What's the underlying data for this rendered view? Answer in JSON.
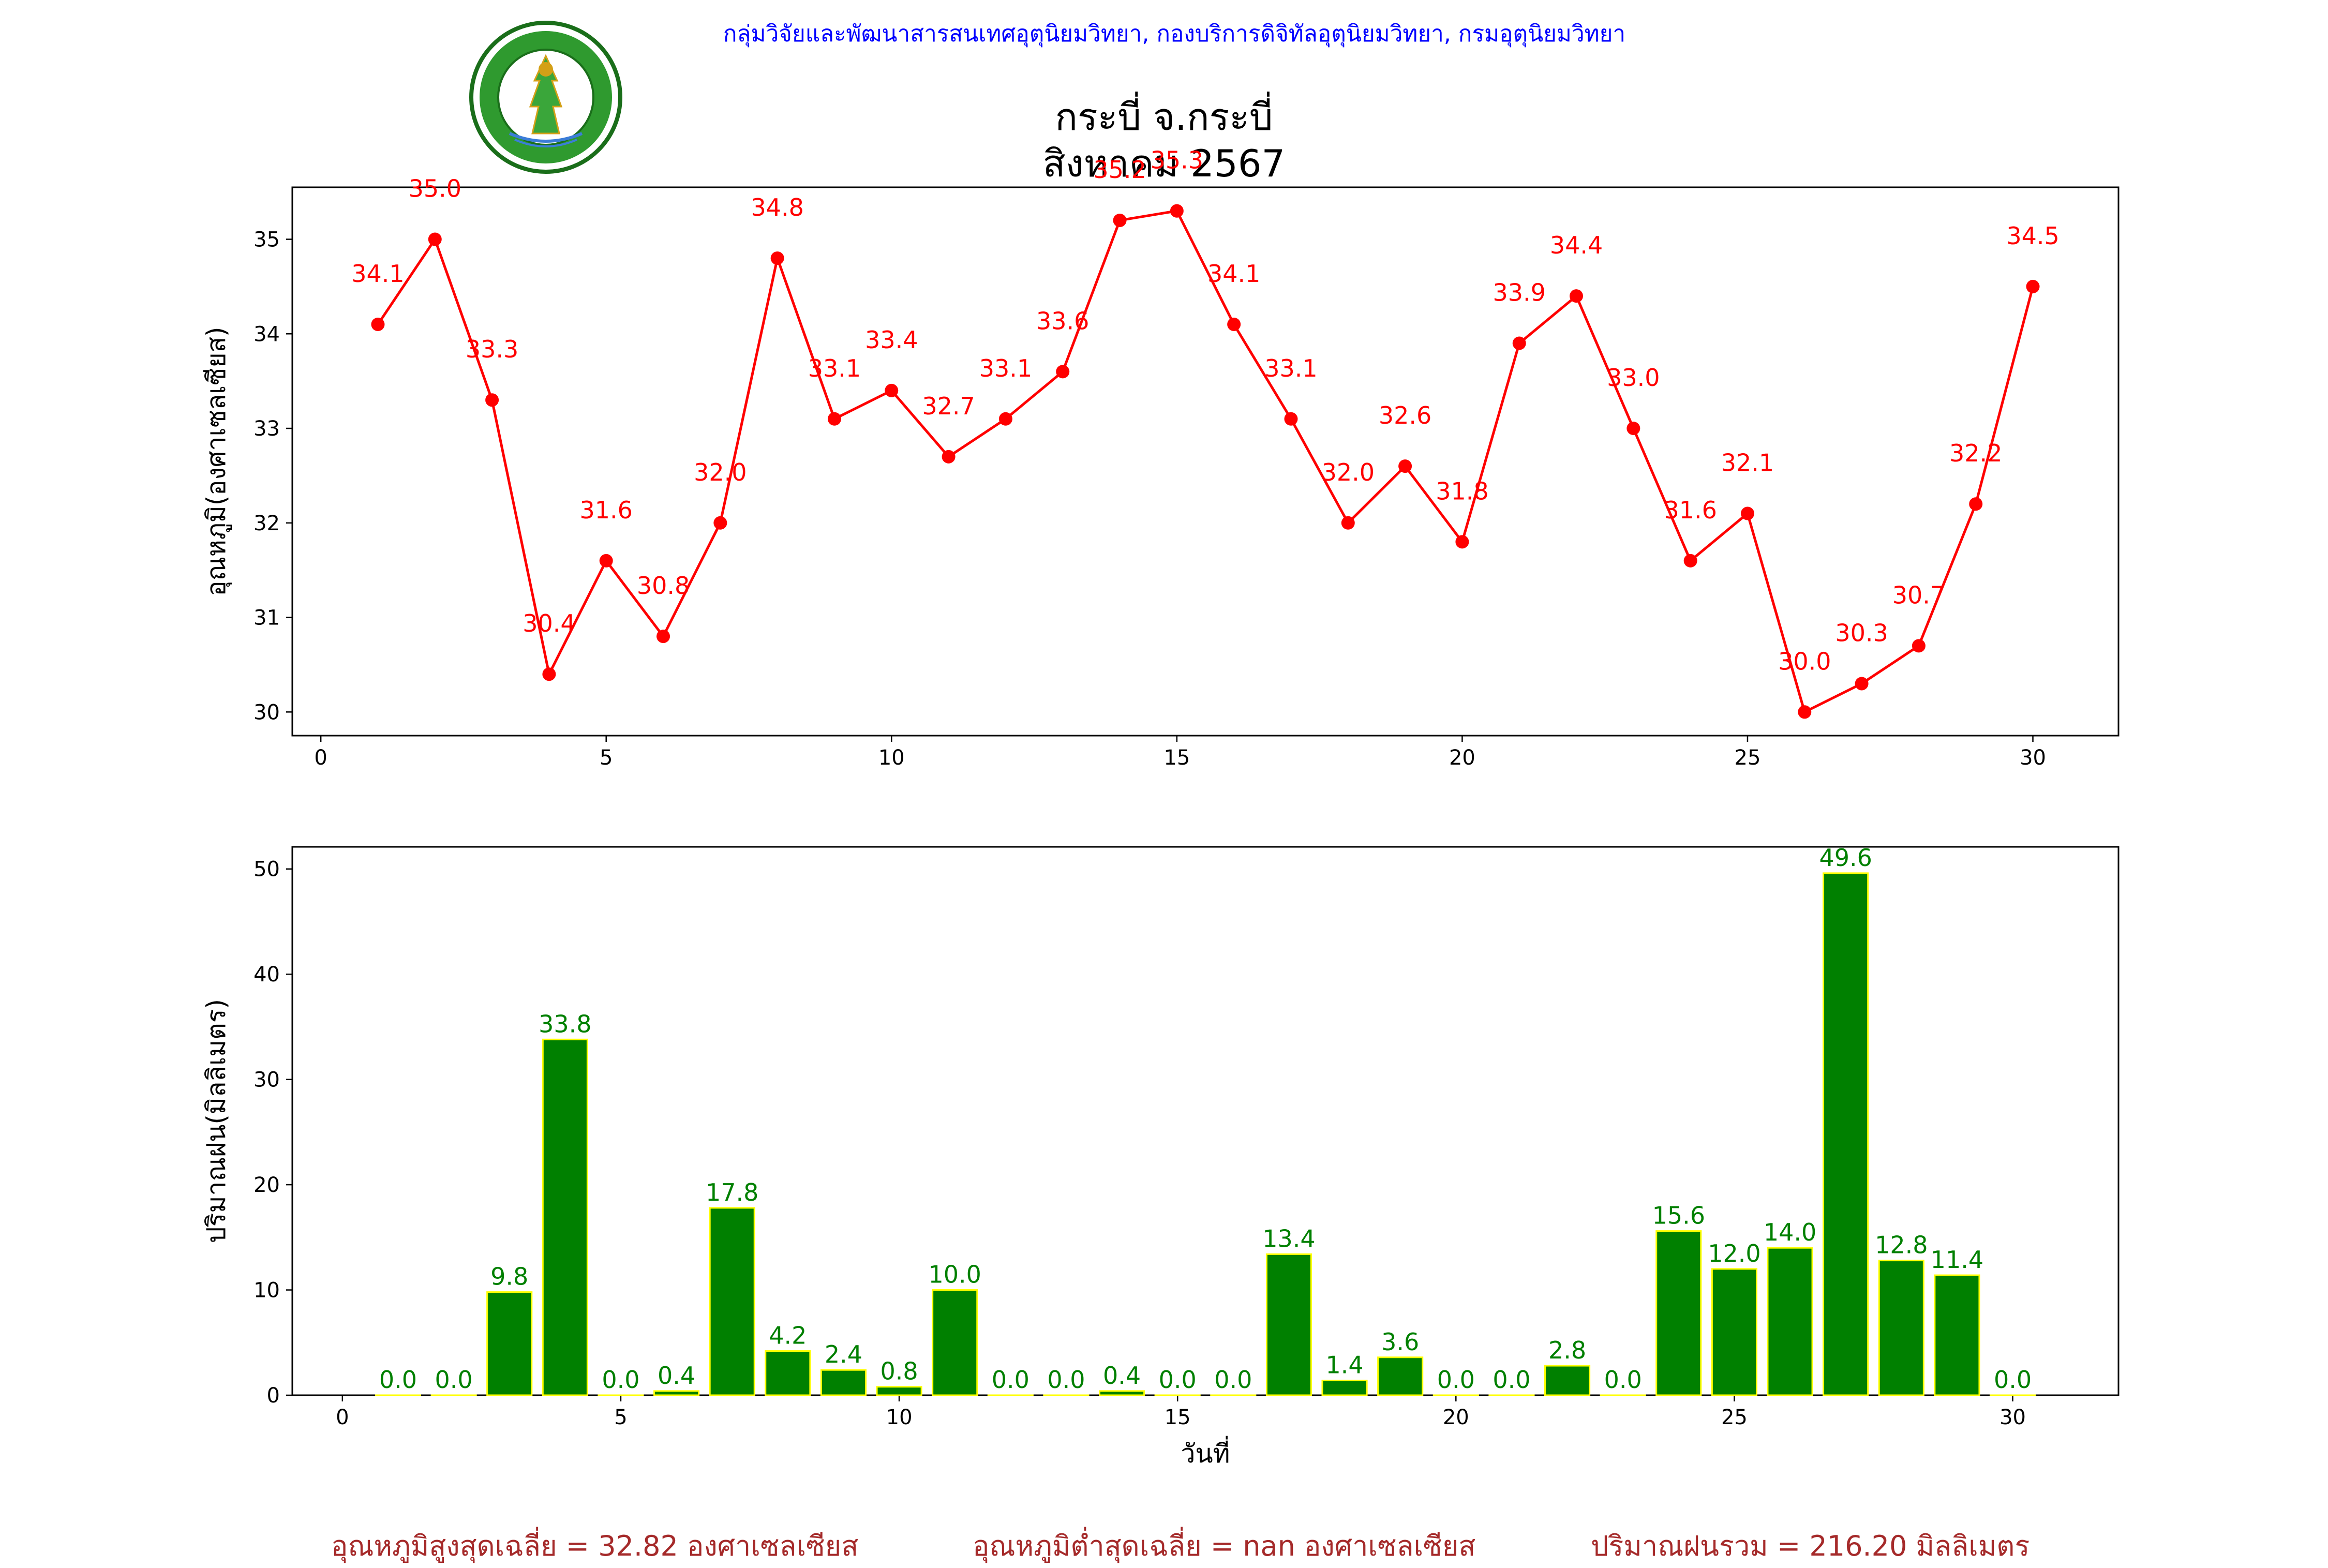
{
  "header": {
    "department": "กลุ่มวิจัยและพัฒนาสารสนเทศอุตุนิยมวิทยา, กองบริการดิจิทัลอุตุนิยมวิทยา, กรมอุตุนิยมวิทยา",
    "title_line1": "กระบี่ จ.กระบี่",
    "title_line2": "สิงหาคม 2567",
    "logo_text": "กรมอุตุนิยมวิทยา METEOROLOGICAL DEPARTMENT"
  },
  "colors": {
    "temperature": "#ff0000",
    "rain_bar": "#008000",
    "rain_edge": "#ffff00",
    "footer": "#a52a2a",
    "department": "#0000ff"
  },
  "chart_data": [
    {
      "type": "line",
      "ylabel": "อุณหภูมิ(องศาเซลเซียส)",
      "xlabel": "",
      "x_ticks": [
        "0",
        "5",
        "10",
        "15",
        "20",
        "25",
        "30"
      ],
      "y_ticks": [
        "30",
        "31",
        "32",
        "33",
        "34",
        "35"
      ],
      "xlim": [
        -0.5,
        31.5
      ],
      "ylim": [
        29.75,
        35.55
      ],
      "x": [
        1,
        2,
        3,
        4,
        5,
        6,
        7,
        8,
        9,
        10,
        11,
        12,
        13,
        14,
        15,
        16,
        17,
        18,
        19,
        20,
        21,
        22,
        23,
        24,
        25,
        26,
        27,
        28,
        29,
        30
      ],
      "values": [
        34.1,
        35.0,
        33.3,
        30.4,
        31.6,
        30.8,
        32.0,
        34.8,
        33.1,
        33.4,
        32.7,
        33.1,
        33.6,
        35.2,
        35.3,
        34.1,
        33.1,
        32.0,
        32.6,
        31.8,
        33.9,
        34.4,
        33.0,
        31.6,
        32.1,
        30.0,
        30.3,
        30.7,
        32.2,
        34.5
      ],
      "labels": [
        "34.1",
        "35.0",
        "33.3",
        "30.4",
        "31.6",
        "30.8",
        "32.0",
        "34.8",
        "33.1",
        "33.4",
        "32.7",
        "33.1",
        "33.6",
        "35.2",
        "35.3",
        "34.1",
        "33.1",
        "32.0",
        "32.6",
        "31.8",
        "33.9",
        "34.4",
        "33.0",
        "31.6",
        "32.1",
        "30.0",
        "30.3",
        "30.7",
        "32.2",
        "34.5"
      ],
      "grid": false
    },
    {
      "type": "bar",
      "ylabel": "ปริมาณฝน(มิลลิเมตร)",
      "xlabel": "วันที่",
      "x_ticks": [
        "0",
        "5",
        "10",
        "15",
        "20",
        "25",
        "30"
      ],
      "y_ticks": [
        "0",
        "10",
        "20",
        "30",
        "40",
        "50"
      ],
      "xlim": [
        -0.9,
        31.9
      ],
      "ylim": [
        0,
        52.1
      ],
      "x": [
        1,
        2,
        3,
        4,
        5,
        6,
        7,
        8,
        9,
        10,
        11,
        12,
        13,
        14,
        15,
        16,
        17,
        18,
        19,
        20,
        21,
        22,
        23,
        24,
        25,
        26,
        27,
        28,
        29,
        30
      ],
      "values": [
        0.0,
        0.0,
        9.8,
        33.8,
        0.0,
        0.4,
        17.8,
        4.2,
        2.4,
        0.8,
        10.0,
        0.0,
        0.0,
        0.4,
        0.0,
        0.0,
        13.4,
        1.4,
        3.6,
        0.0,
        0.0,
        2.8,
        0.0,
        15.6,
        12.0,
        14.0,
        49.6,
        12.8,
        11.4,
        0.0
      ],
      "labels": [
        "0.0",
        "0.0",
        "9.8",
        "33.8",
        "0.0",
        "0.4",
        "17.8",
        "4.2",
        "2.4",
        "0.8",
        "10.0",
        "0.0",
        "0.0",
        "0.4",
        "0.0",
        "0.0",
        "13.4",
        "1.4",
        "3.6",
        "0.0",
        "0.0",
        "2.8",
        "0.0",
        "15.6",
        "12.0",
        "14.0",
        "49.6",
        "12.8",
        "11.4",
        "0.0"
      ],
      "grid": false
    }
  ],
  "footer": {
    "avg_max": "อุณหภูมิสูงสุดเฉลี่ย = 32.82 องศาเซลเซียส",
    "avg_min": "อุณหภูมิต่ำสุดเฉลี่ย = nan องศาเซลเซียส",
    "rain_total": "ปริมาณฝนรวม = 216.20 มิลลิเมตร"
  }
}
